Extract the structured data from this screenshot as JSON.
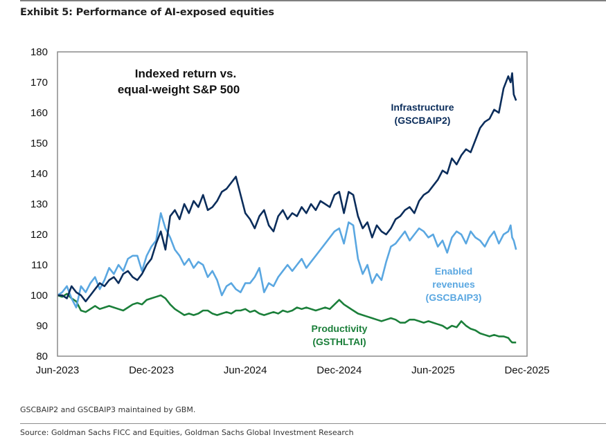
{
  "header": {
    "title": "Exhibit 5: Performance of AI-exposed equities"
  },
  "footer": {
    "note": "GSCBAIP2 and GSCBAIP3 maintained by GBM.",
    "source": "Source: Goldman Sachs FICC and Equities, Goldman Sachs Global Investment Research"
  },
  "chart_data": {
    "type": "line",
    "title": "Indexed return vs. equal-weight S&P 500",
    "title_lines": [
      "Indexed return vs.",
      "equal-weight S&P 500"
    ],
    "xlabel": "",
    "ylabel": "",
    "xlim": [
      0,
      30
    ],
    "x_unit": "months since Jun-2023",
    "ylim": [
      80,
      180
    ],
    "yticks": [
      80,
      90,
      100,
      110,
      120,
      130,
      140,
      150,
      160,
      170,
      180
    ],
    "xticks": [
      {
        "pos": 0,
        "label": "Jun-2023"
      },
      {
        "pos": 6,
        "label": "Dec-2023"
      },
      {
        "pos": 12,
        "label": "Jun-2024"
      },
      {
        "pos": 18,
        "label": "Dec-2024"
      },
      {
        "pos": 24,
        "label": "Jun-2025"
      },
      {
        "pos": 30,
        "label": "Dec-2025"
      }
    ],
    "grid": false,
    "legend": "inline labels",
    "series": [
      {
        "name": "Infrastructure (GSCBAIP2)",
        "label_lines": [
          "Infrastructure",
          "(GSCBAIP2)"
        ],
        "color": "#0b2d5b",
        "x": [
          0,
          0.3,
          0.6,
          0.9,
          1.2,
          1.5,
          1.8,
          2.1,
          2.4,
          2.7,
          3.0,
          3.3,
          3.6,
          3.9,
          4.2,
          4.5,
          4.8,
          5.1,
          5.4,
          5.7,
          6.0,
          6.3,
          6.6,
          6.9,
          7.2,
          7.5,
          7.8,
          8.1,
          8.4,
          8.7,
          9.0,
          9.3,
          9.6,
          9.9,
          10.2,
          10.5,
          10.8,
          11.1,
          11.4,
          11.7,
          12.0,
          12.3,
          12.6,
          12.9,
          13.2,
          13.5,
          13.8,
          14.1,
          14.4,
          14.7,
          15.0,
          15.3,
          15.6,
          15.9,
          16.2,
          16.5,
          16.8,
          17.1,
          17.4,
          17.7,
          18.0,
          18.3,
          18.6,
          18.9,
          19.2,
          19.5,
          19.8,
          20.1,
          20.4,
          20.7,
          21.0,
          21.3,
          21.6,
          21.9,
          22.2,
          22.5,
          22.8,
          23.1,
          23.4,
          23.7,
          24.0,
          24.3,
          24.6,
          24.9,
          25.2,
          25.5,
          25.8,
          26.1,
          26.4,
          26.7,
          27.0,
          27.3,
          27.6,
          27.9,
          28.2,
          28.5,
          28.8,
          28.95,
          29.05,
          29.15,
          29.3
        ],
        "values": [
          100,
          100,
          99,
          103,
          101,
          100,
          98,
          100,
          102,
          104,
          103,
          105,
          106,
          104,
          107,
          108,
          106,
          105,
          107,
          110,
          112,
          117,
          121,
          115,
          126,
          128,
          125,
          130,
          127,
          131,
          129,
          133,
          128,
          129,
          131,
          134,
          135,
          137,
          139,
          133,
          127,
          125,
          122,
          126,
          128,
          123,
          121,
          126,
          128,
          125,
          127,
          126,
          129,
          127,
          130,
          128,
          131,
          130,
          129,
          133,
          134,
          127,
          134,
          133,
          126,
          122,
          124,
          119,
          123,
          121,
          120,
          122,
          125,
          126,
          128,
          129,
          127,
          131,
          133,
          134,
          136,
          138,
          141,
          140,
          145,
          143,
          146,
          148,
          147,
          151,
          155,
          157,
          158,
          161,
          160,
          168,
          172,
          170,
          173,
          166,
          164
        ]
      },
      {
        "name": "Enabled revenues (GSCBAIP3)",
        "label_lines": [
          "Enabled",
          "revenues",
          "(GSCBAIP3)"
        ],
        "color": "#5aa7e1",
        "x": [
          0,
          0.3,
          0.6,
          0.9,
          1.2,
          1.5,
          1.8,
          2.1,
          2.4,
          2.7,
          3.0,
          3.3,
          3.6,
          3.9,
          4.2,
          4.5,
          4.8,
          5.1,
          5.4,
          5.7,
          6.0,
          6.3,
          6.6,
          6.9,
          7.2,
          7.5,
          7.8,
          8.1,
          8.4,
          8.7,
          9.0,
          9.3,
          9.6,
          9.9,
          10.2,
          10.5,
          10.8,
          11.1,
          11.4,
          11.7,
          12.0,
          12.3,
          12.6,
          12.9,
          13.2,
          13.5,
          13.8,
          14.1,
          14.4,
          14.7,
          15.0,
          15.3,
          15.6,
          15.9,
          16.2,
          16.5,
          16.8,
          17.1,
          17.4,
          17.7,
          18.0,
          18.3,
          18.6,
          18.9,
          19.2,
          19.5,
          19.8,
          20.1,
          20.4,
          20.7,
          21.0,
          21.3,
          21.6,
          21.9,
          22.2,
          22.5,
          22.8,
          23.1,
          23.4,
          23.7,
          24.0,
          24.3,
          24.6,
          24.9,
          25.2,
          25.5,
          25.8,
          26.1,
          26.4,
          26.7,
          27.0,
          27.3,
          27.6,
          27.9,
          28.2,
          28.5,
          28.8,
          28.95,
          29.05,
          29.15,
          29.3
        ],
        "values": [
          100,
          101,
          103,
          99,
          96,
          103,
          101,
          104,
          106,
          102,
          105,
          109,
          107,
          110,
          108,
          112,
          113,
          113,
          108,
          113,
          116,
          118,
          127,
          122,
          119,
          115,
          113,
          110,
          112,
          109,
          111,
          110,
          106,
          108,
          105,
          100,
          103,
          104,
          102,
          101,
          104,
          104,
          106,
          109,
          101,
          104,
          103,
          106,
          108,
          110,
          108,
          110,
          112,
          109,
          111,
          113,
          115,
          117,
          119,
          121,
          122,
          117,
          124,
          123,
          112,
          107,
          110,
          104,
          107,
          105,
          111,
          116,
          117,
          119,
          121,
          118,
          120,
          122,
          121,
          119,
          120,
          116,
          118,
          114,
          119,
          121,
          120,
          117,
          121,
          119,
          118,
          116,
          119,
          121,
          117,
          120,
          121,
          123,
          119,
          118,
          115
        ]
      },
      {
        "name": "Productivity (GSTHLTAI)",
        "label_lines": [
          "Productivity",
          "(GSTHLTAI)"
        ],
        "color": "#1b7f3a",
        "x": [
          0,
          0.3,
          0.6,
          0.9,
          1.2,
          1.5,
          1.8,
          2.1,
          2.4,
          2.7,
          3.0,
          3.3,
          3.6,
          3.9,
          4.2,
          4.5,
          4.8,
          5.1,
          5.4,
          5.7,
          6.0,
          6.3,
          6.6,
          6.9,
          7.2,
          7.5,
          7.8,
          8.1,
          8.4,
          8.7,
          9.0,
          9.3,
          9.6,
          9.9,
          10.2,
          10.5,
          10.8,
          11.1,
          11.4,
          11.7,
          12.0,
          12.3,
          12.6,
          12.9,
          13.2,
          13.5,
          13.8,
          14.1,
          14.4,
          14.7,
          15.0,
          15.3,
          15.6,
          15.9,
          16.2,
          16.5,
          16.8,
          17.1,
          17.4,
          17.7,
          18.0,
          18.3,
          18.6,
          18.9,
          19.2,
          19.5,
          19.8,
          20.1,
          20.4,
          20.7,
          21.0,
          21.3,
          21.6,
          21.9,
          22.2,
          22.5,
          22.8,
          23.1,
          23.4,
          23.7,
          24.0,
          24.3,
          24.6,
          24.9,
          25.2,
          25.5,
          25.8,
          26.1,
          26.4,
          26.7,
          27.0,
          27.3,
          27.6,
          27.9,
          28.2,
          28.5,
          28.8,
          28.95,
          29.05,
          29.15,
          29.3
        ],
        "values": [
          100,
          99.5,
          100.5,
          99,
          98,
          95,
          94.5,
          95.5,
          96.5,
          95.5,
          96,
          96.5,
          96,
          95.5,
          95,
          96,
          97,
          97.5,
          97,
          98.5,
          99,
          99.5,
          100,
          99,
          97,
          95.5,
          94.5,
          93.5,
          94,
          93.5,
          94,
          95,
          95,
          94,
          93.5,
          94,
          94.5,
          94,
          95,
          95,
          95.5,
          94.5,
          95,
          94,
          93.5,
          94,
          94.5,
          94,
          95,
          94.5,
          95,
          96,
          95.5,
          96,
          95.5,
          95,
          95.5,
          96,
          95.5,
          97,
          98.5,
          97,
          96,
          95,
          94,
          93.5,
          93,
          92.5,
          92,
          91.5,
          92,
          92.5,
          92,
          91,
          91,
          92,
          92,
          91.5,
          91,
          91.5,
          91,
          90.5,
          90,
          89,
          90,
          89.5,
          91.5,
          90,
          89,
          88.5,
          87.5,
          87,
          86.5,
          87,
          86.5,
          86.5,
          86,
          85,
          84.5,
          84.5,
          84.5
        ]
      }
    ]
  }
}
